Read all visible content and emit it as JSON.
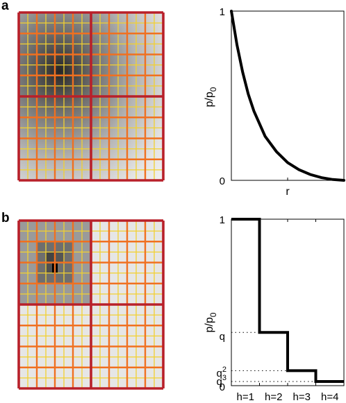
{
  "panels": {
    "a": {
      "label": "a",
      "chart_data": {
        "type": "line",
        "xlabel": "r",
        "ylabel": "p/p0",
        "ylabel_main": "p/p",
        "ylabel_sub": "0",
        "ylim": [
          0,
          1
        ],
        "ytick_labels": [
          "0",
          "1"
        ],
        "x": [
          0,
          0.05,
          0.1,
          0.15,
          0.2,
          0.3,
          0.4,
          0.5,
          0.6,
          0.7,
          0.8,
          0.9,
          1.0
        ],
        "values": [
          1.0,
          0.8,
          0.64,
          0.51,
          0.41,
          0.26,
          0.17,
          0.105,
          0.063,
          0.035,
          0.016,
          0.005,
          0.0
        ]
      }
    },
    "b": {
      "label": "b",
      "chart_data": {
        "type": "line",
        "subtype": "step",
        "ylabel": "p/p0",
        "ylabel_main": "p/p",
        "ylabel_sub": "0",
        "ylim": [
          0,
          1
        ],
        "categories": [
          "h=1",
          "h=2",
          "h=3",
          "h=4"
        ],
        "values": [
          1.0,
          0.32,
          0.09,
          0.025
        ],
        "ytick_labels": {
          "one": "1",
          "zero": "0",
          "q": "q",
          "q2_main": "q",
          "q2_exp": "2",
          "q3_main": "q",
          "q3_sub": "3"
        }
      }
    }
  },
  "colors": {
    "coarse_grid": "#b8202a",
    "mid_grid": "#f07020",
    "fine_grid": "#f2d030",
    "curve": "#000000"
  }
}
